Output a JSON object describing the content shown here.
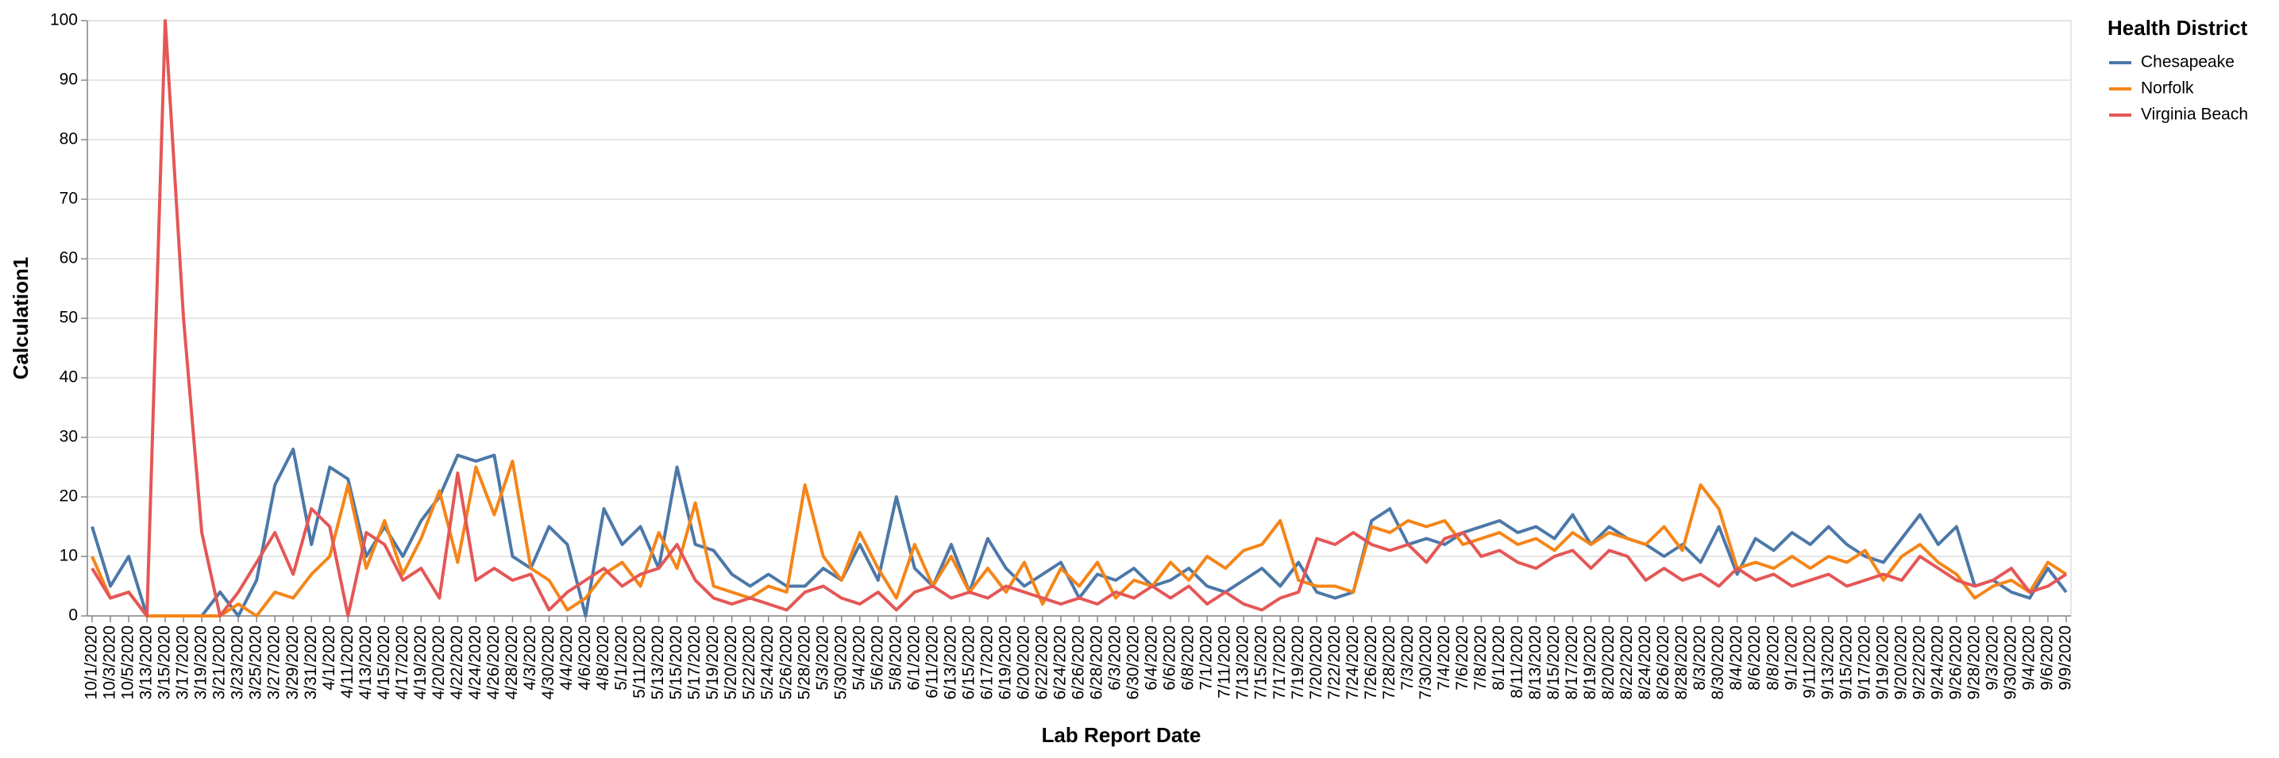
{
  "chart_data": {
    "type": "line",
    "x_label": "Lab Report Date",
    "y_label": "Calculation1",
    "legend_title": "Health District",
    "categories": [
      "10/1/2020",
      "10/3/2020",
      "10/5/2020",
      "3/13/2020",
      "3/15/2020",
      "3/17/2020",
      "3/19/2020",
      "3/21/2020",
      "3/23/2020",
      "3/25/2020",
      "3/27/2020",
      "3/29/2020",
      "3/31/2020",
      "4/1/2020",
      "4/11/2020",
      "4/13/2020",
      "4/15/2020",
      "4/17/2020",
      "4/19/2020",
      "4/20/2020",
      "4/22/2020",
      "4/24/2020",
      "4/26/2020",
      "4/28/2020",
      "4/3/2020",
      "4/30/2020",
      "4/4/2020",
      "4/6/2020",
      "4/8/2020",
      "5/1/2020",
      "5/11/2020",
      "5/13/2020",
      "5/15/2020",
      "5/17/2020",
      "5/19/2020",
      "5/20/2020",
      "5/22/2020",
      "5/24/2020",
      "5/26/2020",
      "5/28/2020",
      "5/3/2020",
      "5/30/2020",
      "5/4/2020",
      "5/6/2020",
      "5/8/2020",
      "6/1/2020",
      "6/11/2020",
      "6/13/2020",
      "6/15/2020",
      "6/17/2020",
      "6/19/2020",
      "6/20/2020",
      "6/22/2020",
      "6/24/2020",
      "6/26/2020",
      "6/28/2020",
      "6/3/2020",
      "6/30/2020",
      "6/4/2020",
      "6/6/2020",
      "6/8/2020",
      "7/1/2020",
      "7/11/2020",
      "7/13/2020",
      "7/15/2020",
      "7/17/2020",
      "7/19/2020",
      "7/20/2020",
      "7/22/2020",
      "7/24/2020",
      "7/26/2020",
      "7/28/2020",
      "7/3/2020",
      "7/30/2020",
      "7/4/2020",
      "7/6/2020",
      "7/8/2020",
      "8/1/2020",
      "8/11/2020",
      "8/13/2020",
      "8/15/2020",
      "8/17/2020",
      "8/19/2020",
      "8/20/2020",
      "8/22/2020",
      "8/24/2020",
      "8/26/2020",
      "8/28/2020",
      "8/3/2020",
      "8/30/2020",
      "8/4/2020",
      "8/6/2020",
      "8/8/2020",
      "9/1/2020",
      "9/11/2020",
      "9/13/2020",
      "9/15/2020",
      "9/17/2020",
      "9/19/2020",
      "9/20/2020",
      "9/22/2020",
      "9/24/2020",
      "9/26/2020",
      "9/28/2020",
      "9/3/2020",
      "9/30/2020",
      "9/4/2020",
      "9/6/2020",
      "9/9/2020"
    ],
    "series": [
      {
        "name": "Chesapeake",
        "color": "#4c78a8",
        "values": [
          15,
          5,
          10,
          0,
          0,
          0,
          0,
          4,
          0,
          6,
          22,
          28,
          12,
          25,
          23,
          10,
          15,
          10,
          16,
          20,
          27,
          26,
          27,
          10,
          8,
          15,
          12,
          0,
          18,
          12,
          15,
          8,
          25,
          12,
          11,
          7,
          5,
          7,
          5,
          5,
          8,
          6,
          12,
          6,
          20,
          8,
          5,
          12,
          4,
          13,
          8,
          5,
          7,
          9,
          3,
          7,
          6,
          8,
          5,
          6,
          8,
          5,
          4,
          6,
          8,
          5,
          9,
          4,
          3,
          4,
          16,
          18,
          12,
          13,
          12,
          14,
          15,
          16,
          14,
          15,
          13,
          17,
          12,
          15,
          13,
          12,
          10,
          12,
          9,
          15,
          7,
          13,
          11,
          14,
          12,
          15,
          12,
          10,
          9,
          13,
          17,
          12,
          15,
          5,
          6,
          4,
          3,
          8,
          4
        ]
      },
      {
        "name": "Norfolk",
        "color": "#f58518",
        "values": [
          10,
          3,
          4,
          0,
          0,
          0,
          0,
          0,
          2,
          0,
          4,
          3,
          7,
          10,
          22,
          8,
          16,
          7,
          13,
          21,
          9,
          25,
          17,
          26,
          8,
          6,
          1,
          3,
          7,
          9,
          5,
          14,
          8,
          19,
          5,
          4,
          3,
          5,
          4,
          22,
          10,
          6,
          14,
          8,
          3,
          12,
          5,
          10,
          4,
          8,
          4,
          9,
          2,
          8,
          5,
          9,
          3,
          6,
          5,
          9,
          6,
          10,
          8,
          11,
          12,
          16,
          6,
          5,
          5,
          4,
          15,
          14,
          16,
          15,
          16,
          12,
          13,
          14,
          12,
          13,
          11,
          14,
          12,
          14,
          13,
          12,
          15,
          11,
          22,
          18,
          8,
          9,
          8,
          10,
          8,
          10,
          9,
          11,
          6,
          10,
          12,
          9,
          7,
          3,
          5,
          6,
          4,
          9,
          7
        ]
      },
      {
        "name": "Virginia Beach",
        "color": "#e45756",
        "values": [
          8,
          3,
          4,
          0,
          100,
          50,
          14,
          0,
          4,
          9,
          14,
          7,
          18,
          15,
          0,
          14,
          12,
          6,
          8,
          3,
          24,
          6,
          8,
          6,
          7,
          1,
          4,
          6,
          8,
          5,
          7,
          8,
          12,
          6,
          3,
          2,
          3,
          2,
          1,
          4,
          5,
          3,
          2,
          4,
          1,
          4,
          5,
          3,
          4,
          3,
          5,
          4,
          3,
          2,
          3,
          2,
          4,
          3,
          5,
          3,
          5,
          2,
          4,
          2,
          1,
          3,
          4,
          13,
          12,
          14,
          12,
          11,
          12,
          9,
          13,
          14,
          10,
          11,
          9,
          8,
          10,
          11,
          8,
          11,
          10,
          6,
          8,
          6,
          7,
          5,
          8,
          6,
          7,
          5,
          6,
          7,
          5,
          6,
          7,
          6,
          10,
          8,
          6,
          5,
          6,
          8,
          4,
          5,
          7
        ]
      }
    ],
    "ylim": [
      0,
      100
    ],
    "yticks": [
      0,
      10,
      20,
      30,
      40,
      50,
      60,
      70,
      80,
      90,
      100
    ],
    "grid": true,
    "legend": "top-right"
  }
}
